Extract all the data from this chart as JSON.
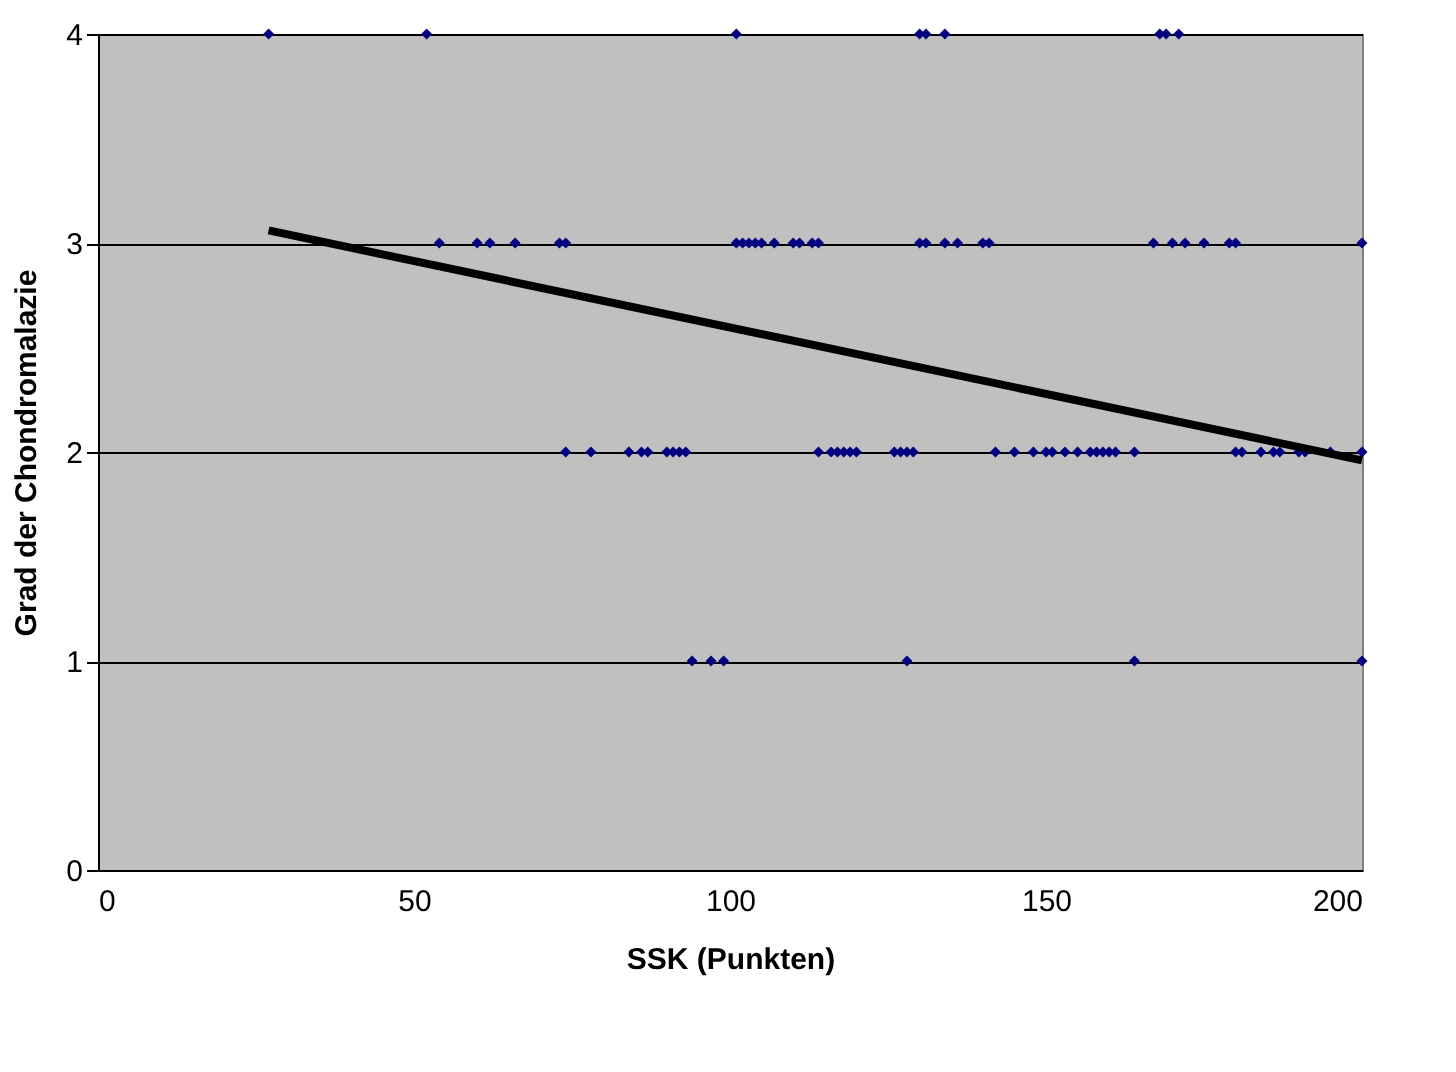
{
  "chart_data": {
    "type": "scatter",
    "xlabel": "SSK (Punkten)",
    "ylabel": "Grad der Chondromalazie",
    "xlim": [
      0,
      200
    ],
    "ylim": [
      0,
      4
    ],
    "xticks": [
      0,
      50,
      100,
      150,
      200
    ],
    "yticks": [
      0,
      1,
      2,
      3,
      4
    ],
    "grid": "y",
    "series": [
      {
        "marker": "diamond",
        "color": "#000080",
        "x": [
          27,
          52,
          101,
          130,
          131,
          134,
          168,
          169,
          171,
          54,
          60,
          62,
          66,
          73,
          74,
          101,
          102,
          103,
          104,
          105,
          107,
          110,
          111,
          113,
          114,
          130,
          131,
          134,
          136,
          140,
          141,
          167,
          170,
          172,
          175,
          179,
          180,
          200,
          74,
          78,
          84,
          86,
          87,
          90,
          91,
          92,
          93,
          114,
          116,
          117,
          118,
          119,
          120,
          126,
          127,
          128,
          129,
          142,
          145,
          148,
          150,
          151,
          153,
          155,
          157,
          158,
          159,
          160,
          161,
          164,
          180,
          181,
          184,
          186,
          187,
          190,
          191,
          195,
          200,
          94,
          97,
          99,
          128,
          164,
          200
        ],
        "values": [
          4,
          4,
          4,
          4,
          4,
          4,
          4,
          4,
          4,
          3,
          3,
          3,
          3,
          3,
          3,
          3,
          3,
          3,
          3,
          3,
          3,
          3,
          3,
          3,
          3,
          3,
          3,
          3,
          3,
          3,
          3,
          3,
          3,
          3,
          3,
          3,
          3,
          3,
          2,
          2,
          2,
          2,
          2,
          2,
          2,
          2,
          2,
          2,
          2,
          2,
          2,
          2,
          2,
          2,
          2,
          2,
          2,
          2,
          2,
          2,
          2,
          2,
          2,
          2,
          2,
          2,
          2,
          2,
          2,
          2,
          2,
          2,
          2,
          2,
          2,
          2,
          2,
          2,
          2,
          1,
          1,
          1,
          1,
          1,
          1
        ]
      },
      {
        "type": "line",
        "marker": "none",
        "color": "#000000",
        "x": [
          27,
          200
        ],
        "values": [
          3.06,
          1.96
        ]
      }
    ]
  }
}
